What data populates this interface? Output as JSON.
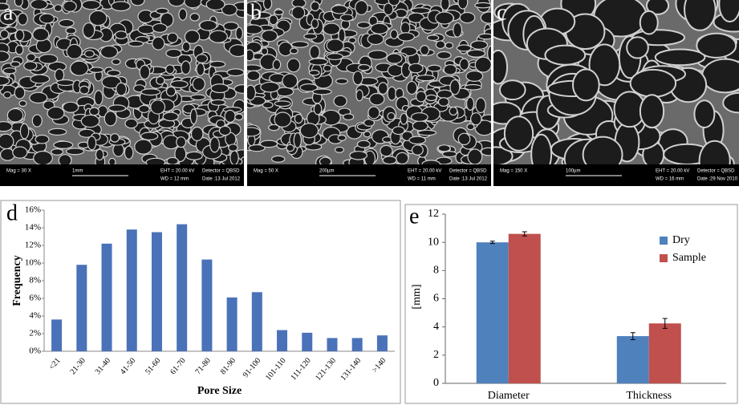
{
  "panels": [
    {
      "label": "a",
      "mag": "Mag =   30 X",
      "wd": "WD =   12 mm",
      "scale": "1mm",
      "eht": "EHT = 20.00 kV",
      "detector": "Detector = QBSD",
      "date": "Date :13 Jul 2012"
    },
    {
      "label": "b",
      "mag": "Mag =   50 X",
      "wd": "WD =   11 mm",
      "scale": "200µm",
      "eht": "EHT = 20.00 kV",
      "detector": "Detector = QBSD",
      "date": "Date :13 Jul 2012"
    },
    {
      "label": "c",
      "mag": "Mag =  150 X",
      "wd": "WD =   16 mm",
      "scale": "100µm",
      "eht": "EHT = 20.00 kV",
      "detector": "Detector = QBSD",
      "date": "Date :29 Nov 2010"
    }
  ],
  "chart_data": [
    {
      "type": "bar",
      "panel_label": "d",
      "x_label": "Pore Size",
      "y_label": "Frequency",
      "categories": [
        "<21",
        "21-30",
        "31-40",
        "41-50",
        "51-60",
        "61-70",
        "71-80",
        "81-90",
        "91-100",
        "101-110",
        "111-120",
        "121-130",
        "131-140",
        ">140"
      ],
      "values": [
        3.6,
        9.8,
        12.2,
        13.8,
        13.5,
        14.4,
        10.4,
        6.1,
        6.7,
        2.4,
        2.1,
        1.5,
        1.5,
        1.8
      ],
      "color": "#4a72b8",
      "ylim": [
        0,
        16
      ],
      "yticks": [
        {
          "value": 0,
          "label": "0%"
        },
        {
          "value": 2,
          "label": "2%"
        },
        {
          "value": 4,
          "label": "4%"
        },
        {
          "value": 6,
          "label": "6%"
        },
        {
          "value": 8,
          "label": "8%"
        },
        {
          "value": 10,
          "label": "10%"
        },
        {
          "value": 12,
          "label": "12%"
        },
        {
          "value": 14,
          "label": "14%"
        },
        {
          "value": 16,
          "label": "16%"
        }
      ],
      "grid": false
    },
    {
      "type": "grouped_bar",
      "panel_label": "e",
      "y_label": "[mm]",
      "categories": [
        "Diameter",
        "Thickness"
      ],
      "series": [
        {
          "name": "Dry",
          "color": "#4f81bd",
          "values": [
            10.0,
            3.35
          ],
          "errors": [
            0.08,
            0.25
          ]
        },
        {
          "name": "Sample",
          "color": "#c0504d",
          "values": [
            10.6,
            4.25
          ],
          "errors": [
            0.15,
            0.35
          ]
        }
      ],
      "ylim": [
        0,
        12
      ],
      "yticks": [
        0,
        2,
        4,
        6,
        8,
        10,
        12
      ],
      "grid": false,
      "legend": "top-right"
    }
  ]
}
